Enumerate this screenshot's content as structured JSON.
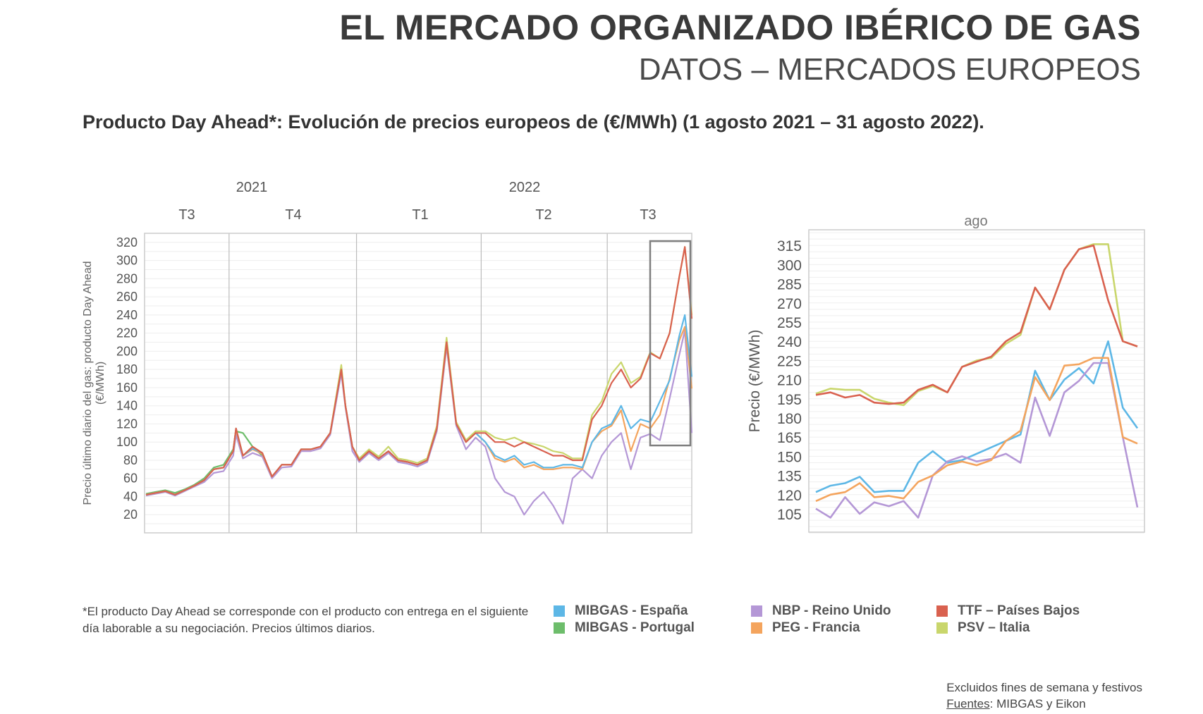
{
  "header": {
    "title": "EL MERCADO ORGANIZADO IBÉRICO DE GAS",
    "subtitle": "DATOS – MERCADOS EUROPEOS",
    "heading": "Producto Day Ahead*: Evolución de precios europeos de (€/MWh) (1 agosto 2021 – 31 agosto 2022)."
  },
  "colors": {
    "MIBGAS - España": "#5db7e6",
    "MIBGAS - Portugal": "#6dbd6b",
    "NBP - Reino Unido": "#b497d6",
    "PEG - Francia": "#f4a45d",
    "TTF – Países Bajos": "#d9614f",
    "PSV – Italia": "#c9d66c"
  },
  "chart_data": [
    {
      "type": "line",
      "ylabel": "Precio último diario del gas: producto Day Ahead (€/MWh)",
      "years": [
        "2021",
        "2022"
      ],
      "quarters": [
        "T3",
        "T4",
        "T1",
        "T2",
        "T3"
      ],
      "yticks": [
        20,
        40,
        60,
        80,
        100,
        120,
        140,
        160,
        180,
        200,
        220,
        240,
        260,
        280,
        300,
        320
      ],
      "ylim": [
        0,
        330
      ],
      "xlim": [
        "2021-08-01",
        "2022-08-31"
      ],
      "grid": true,
      "x": [
        "2021-08-02",
        "2021-08-09",
        "2021-08-16",
        "2021-08-23",
        "2021-08-30",
        "2021-09-06",
        "2021-09-13",
        "2021-09-20",
        "2021-09-27",
        "2021-10-04",
        "2021-10-06",
        "2021-10-11",
        "2021-10-18",
        "2021-10-25",
        "2021-11-01",
        "2021-11-08",
        "2021-11-15",
        "2021-11-22",
        "2021-11-29",
        "2021-12-06",
        "2021-12-13",
        "2021-12-21",
        "2021-12-24",
        "2021-12-29",
        "2022-01-03",
        "2022-01-10",
        "2022-01-17",
        "2022-01-24",
        "2022-01-31",
        "2022-02-07",
        "2022-02-14",
        "2022-02-21",
        "2022-02-28",
        "2022-03-07",
        "2022-03-14",
        "2022-03-21",
        "2022-03-28",
        "2022-04-04",
        "2022-04-11",
        "2022-04-18",
        "2022-04-25",
        "2022-05-02",
        "2022-05-09",
        "2022-05-16",
        "2022-05-23",
        "2022-05-30",
        "2022-06-06",
        "2022-06-13",
        "2022-06-20",
        "2022-06-27",
        "2022-07-04",
        "2022-07-11",
        "2022-07-18",
        "2022-07-25",
        "2022-08-01",
        "2022-08-08",
        "2022-08-15",
        "2022-08-22",
        "2022-08-26",
        "2022-08-31"
      ],
      "series": [
        {
          "name": "MIBGAS - Portugal",
          "values": [
            43,
            45,
            47,
            44,
            48,
            53,
            60,
            72,
            75,
            92,
            112,
            110,
            95,
            85,
            null,
            null,
            null,
            null,
            null,
            null,
            null,
            null,
            null,
            null,
            null,
            null,
            null,
            null,
            null,
            null,
            null,
            null,
            null,
            null,
            null,
            null,
            null,
            null,
            null,
            null,
            null,
            null,
            null,
            null,
            null,
            null,
            null,
            null,
            null,
            null,
            null,
            null,
            null,
            null,
            null,
            null,
            null,
            null,
            null,
            null
          ]
        },
        {
          "name": "NBP - Reino Unido",
          "values": [
            41,
            43,
            45,
            41,
            46,
            51,
            56,
            66,
            68,
            85,
            108,
            82,
            88,
            84,
            60,
            72,
            73,
            90,
            90,
            93,
            108,
            176,
            138,
            90,
            78,
            88,
            80,
            88,
            78,
            76,
            73,
            78,
            112,
            205,
            118,
            92,
            105,
            95,
            60,
            45,
            40,
            20,
            35,
            45,
            30,
            10,
            60,
            70,
            60,
            85,
            100,
            110,
            70,
            105,
            109,
            102,
            148,
            196,
            223,
            110
          ]
        },
        {
          "name": "PEG - Francia",
          "values": [
            42,
            44,
            46,
            42,
            47,
            52,
            58,
            70,
            72,
            90,
            114,
            85,
            92,
            87,
            62,
            75,
            75,
            92,
            92,
            95,
            110,
            182,
            140,
            95,
            80,
            90,
            82,
            90,
            80,
            78,
            75,
            80,
            115,
            208,
            120,
            100,
            110,
            100,
            82,
            78,
            82,
            72,
            75,
            70,
            70,
            72,
            72,
            70,
            100,
            112,
            118,
            135,
            90,
            120,
            115,
            130,
            170,
            212,
            227,
            159
          ]
        },
        {
          "name": "MIBGAS - España",
          "values": [
            42,
            44,
            46,
            42,
            47,
            52,
            58,
            70,
            72,
            90,
            115,
            85,
            93,
            88,
            62,
            75,
            75,
            92,
            92,
            95,
            110,
            180,
            140,
            95,
            80,
            90,
            82,
            90,
            80,
            78,
            75,
            80,
            115,
            210,
            120,
            100,
            110,
            100,
            85,
            80,
            85,
            75,
            78,
            72,
            72,
            75,
            75,
            72,
            100,
            115,
            120,
            140,
            115,
            125,
            122,
            145,
            168,
            217,
            240,
            172
          ]
        },
        {
          "name": "PSV – Italia",
          "values": [
            42,
            44,
            46,
            42,
            47,
            52,
            58,
            70,
            72,
            90,
            115,
            85,
            95,
            88,
            62,
            75,
            75,
            92,
            92,
            95,
            110,
            185,
            140,
            95,
            82,
            92,
            84,
            95,
            82,
            80,
            77,
            82,
            118,
            215,
            122,
            102,
            112,
            112,
            105,
            102,
            105,
            100,
            98,
            95,
            90,
            88,
            82,
            82,
            130,
            145,
            175,
            188,
            165,
            172,
            199,
            192,
            220,
            282,
            315,
            240
          ]
        },
        {
          "name": "TTF – Países Bajos",
          "values": [
            42,
            44,
            46,
            42,
            47,
            52,
            58,
            70,
            72,
            90,
            115,
            85,
            95,
            88,
            62,
            75,
            75,
            92,
            92,
            95,
            110,
            180,
            140,
            95,
            80,
            90,
            82,
            90,
            80,
            78,
            75,
            80,
            115,
            210,
            120,
            100,
            110,
            110,
            100,
            100,
            95,
            100,
            95,
            90,
            85,
            85,
            80,
            80,
            125,
            140,
            165,
            180,
            160,
            170,
            198,
            192,
            220,
            282,
            315,
            236
          ]
        }
      ]
    },
    {
      "type": "line",
      "title": "ago",
      "ylabel": "Precio (€/MWh)",
      "yticks": [
        105,
        120,
        135,
        150,
        165,
        180,
        195,
        210,
        225,
        240,
        255,
        270,
        285,
        300,
        315
      ],
      "ylim": [
        90,
        327
      ],
      "grid": true,
      "series": [
        {
          "name": "MIBGAS - España",
          "values": [
            122,
            127,
            129,
            134,
            122,
            123,
            123,
            145,
            154,
            145,
            147,
            152,
            157,
            162,
            167,
            217,
            194,
            210,
            219,
            207,
            240,
            188,
            172
          ]
        },
        {
          "name": "NBP - Reino Unido",
          "values": [
            109,
            102,
            118,
            105,
            114,
            111,
            115,
            102,
            135,
            146,
            150,
            146,
            148,
            152,
            145,
            196,
            166,
            200,
            209,
            223,
            223,
            165,
            110
          ]
        },
        {
          "name": "PEG - Francia",
          "values": [
            115,
            120,
            122,
            129,
            118,
            119,
            117,
            130,
            135,
            143,
            146,
            143,
            147,
            162,
            170,
            212,
            194,
            221,
            222,
            227,
            227,
            165,
            160
          ]
        },
        {
          "name": "PSV – Italia",
          "values": [
            199,
            203,
            202,
            202,
            195,
            192,
            190,
            201,
            205,
            200,
            220,
            225,
            227,
            238,
            245,
            282,
            265,
            296,
            312,
            316,
            316,
            240,
            236
          ]
        },
        {
          "name": "TTF – Países Bajos",
          "values": [
            198,
            200,
            196,
            198,
            192,
            191,
            192,
            202,
            206,
            200,
            220,
            224,
            228,
            240,
            247,
            282,
            265,
            296,
            312,
            315,
            272,
            240,
            236
          ]
        }
      ]
    }
  ],
  "legend": [
    "MIBGAS - España",
    "MIBGAS - Portugal",
    "NBP - Reino Unido",
    "PEG - Francia",
    "TTF – Países Bajos",
    "PSV – Italia"
  ],
  "footnote": "*El producto Day Ahead se corresponde con el producto con entrega en el siguiente día laborable a su negociación. Precios últimos diarios.",
  "sources": {
    "line1": "Excluidos fines de semana y festivos",
    "label": "Fuentes",
    "text": ": MIBGAS y Eikon"
  }
}
